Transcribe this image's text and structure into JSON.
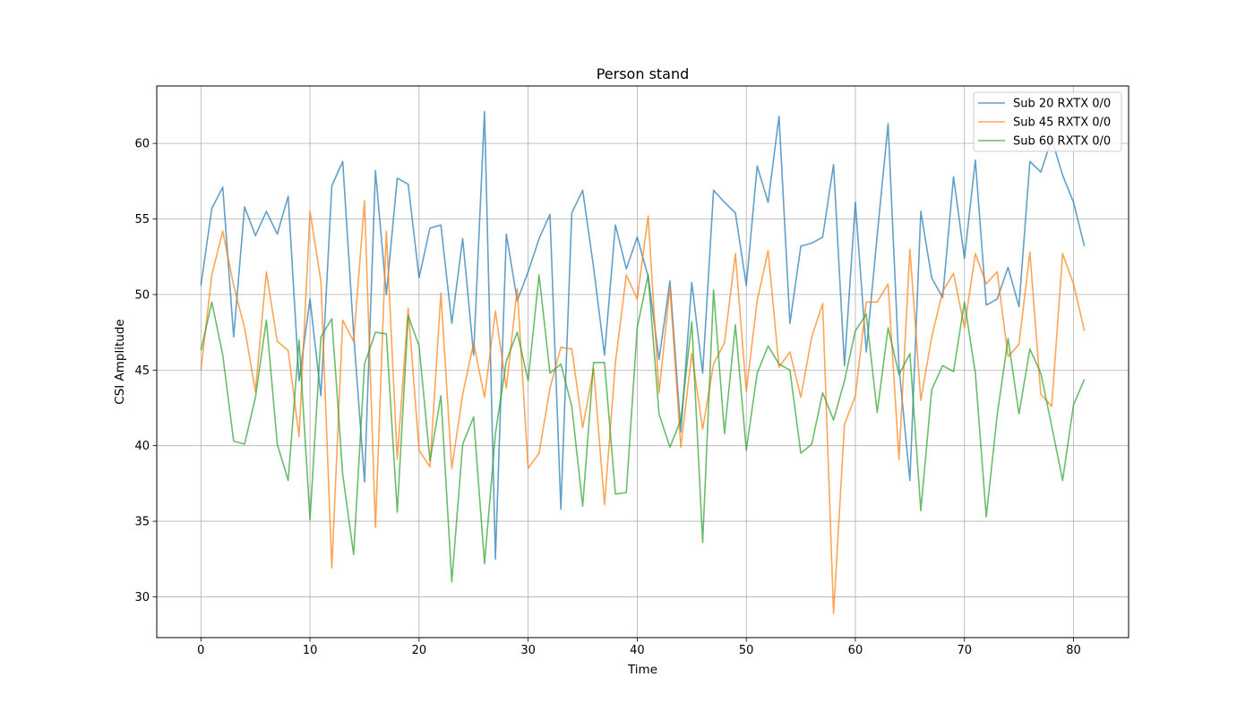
{
  "chart_data": {
    "type": "line",
    "title": "Person stand",
    "xlabel": "Time",
    "ylabel": "CSI Amplitude",
    "xlim": [
      -4.05,
      85.05
    ],
    "ylim": [
      27.3,
      63.8
    ],
    "xticks": [
      0,
      10,
      20,
      30,
      40,
      50,
      60,
      70,
      80
    ],
    "yticks": [
      30,
      35,
      40,
      45,
      50,
      55,
      60
    ],
    "grid": true,
    "legend_position": "top-right",
    "x": [
      0,
      1,
      2,
      3,
      4,
      5,
      6,
      7,
      8,
      9,
      10,
      11,
      12,
      13,
      14,
      15,
      16,
      17,
      18,
      19,
      20,
      21,
      22,
      23,
      24,
      25,
      26,
      27,
      28,
      29,
      30,
      31,
      32,
      33,
      34,
      35,
      36,
      37,
      38,
      39,
      40,
      41,
      42,
      43,
      44,
      45,
      46,
      47,
      48,
      49,
      50,
      51,
      52,
      53,
      54,
      55,
      56,
      57,
      58,
      59,
      60,
      61,
      62,
      63,
      64,
      65,
      66,
      67,
      68,
      69,
      70,
      71,
      72,
      73,
      74,
      75,
      76,
      77,
      78,
      79,
      80,
      81
    ],
    "series": [
      {
        "name": "Sub 20 RXTX 0/0",
        "color": "#1f77b4",
        "values": [
          50.6,
          55.7,
          57.1,
          47.2,
          55.8,
          53.9,
          55.5,
          54.0,
          56.5,
          44.3,
          49.7,
          43.3,
          57.2,
          58.8,
          47.4,
          37.6,
          58.2,
          50.0,
          57.7,
          57.3,
          51.1,
          54.4,
          54.6,
          48.1,
          53.7,
          46.0,
          62.1,
          32.5,
          54.0,
          49.6,
          51.5,
          53.7,
          55.3,
          35.8,
          55.4,
          56.9,
          51.8,
          46.0,
          54.6,
          51.7,
          53.8,
          51.2,
          45.7,
          50.9,
          40.9,
          50.8,
          44.8,
          56.9,
          56.1,
          55.4,
          50.6,
          58.5,
          56.1,
          61.8,
          48.1,
          53.2,
          53.4,
          53.8,
          58.6,
          45.3,
          56.1,
          46.2,
          53.9,
          61.3,
          45.2,
          37.7,
          55.5,
          51.1,
          49.8,
          57.8,
          52.4,
          58.9,
          49.3,
          49.7,
          51.8,
          49.2,
          58.8,
          58.1,
          60.3,
          57.9,
          56.1,
          53.2
        ]
      },
      {
        "name": "Sub 45 RXTX 0/0",
        "color": "#ff7f0e",
        "values": [
          45.0,
          51.3,
          54.2,
          50.6,
          47.8,
          43.6,
          51.5,
          46.9,
          46.3,
          40.6,
          55.5,
          50.9,
          31.9,
          48.3,
          46.9,
          56.2,
          34.6,
          54.2,
          39.1,
          49.1,
          39.7,
          38.6,
          50.1,
          38.5,
          43.4,
          46.8,
          43.2,
          48.9,
          43.8,
          50.4,
          38.5,
          39.5,
          43.8,
          46.5,
          46.4,
          41.2,
          45.1,
          36.1,
          45.5,
          51.3,
          49.7,
          55.2,
          43.5,
          50.5,
          39.9,
          46.1,
          41.1,
          45.4,
          46.8,
          52.7,
          43.6,
          49.6,
          52.9,
          45.2,
          46.2,
          43.2,
          47.2,
          49.4,
          28.9,
          41.4,
          43.3,
          49.5,
          49.5,
          50.7,
          39.1,
          53.0,
          43.0,
          47.2,
          50.2,
          51.4,
          47.8,
          52.7,
          50.7,
          51.5,
          45.9,
          46.7,
          52.8,
          43.4,
          42.6,
          52.7,
          50.7,
          47.6
        ]
      },
      {
        "name": "Sub 60 RXTX 0/0",
        "color": "#2ca02c",
        "values": [
          46.3,
          49.5,
          46.0,
          40.3,
          40.1,
          43.2,
          48.3,
          40.1,
          37.7,
          47.0,
          35.1,
          47.2,
          48.4,
          38.1,
          32.8,
          45.4,
          47.5,
          47.4,
          35.6,
          48.6,
          46.6,
          39.0,
          43.3,
          31.0,
          40.1,
          41.9,
          32.2,
          40.8,
          45.6,
          47.5,
          44.3,
          51.3,
          44.8,
          45.4,
          42.6,
          36.0,
          45.5,
          45.5,
          36.8,
          36.9,
          47.8,
          51.3,
          42.1,
          39.9,
          41.7,
          48.2,
          33.6,
          50.3,
          40.8,
          48.0,
          39.7,
          44.8,
          46.6,
          45.4,
          45.0,
          39.5,
          40.1,
          43.5,
          41.7,
          44.3,
          47.6,
          48.7,
          42.2,
          47.8,
          44.7,
          46.1,
          35.7,
          43.7,
          45.3,
          44.9,
          49.5,
          44.8,
          35.3,
          42.0,
          47.1,
          42.1,
          46.4,
          44.8,
          41.3,
          37.7,
          42.7,
          44.4
        ]
      }
    ]
  }
}
